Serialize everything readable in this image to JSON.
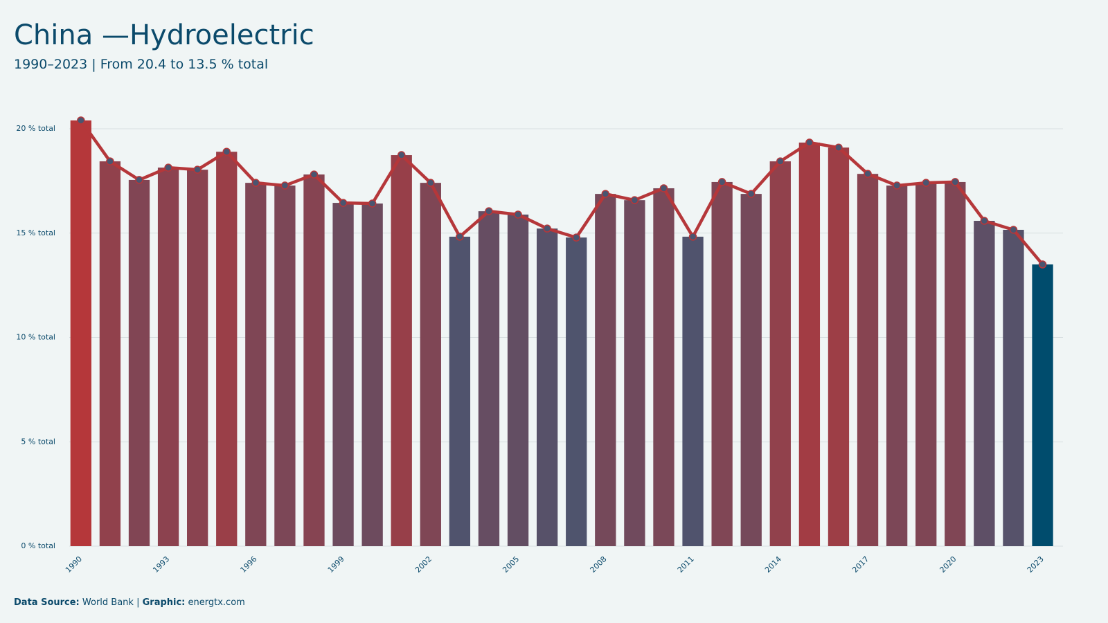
{
  "chart_data": {
    "type": "bar-line",
    "title": "China —Hydroelectric",
    "subtitle": "1990–2023 | From 20.4 to 13.5 % total",
    "footer": {
      "source_label": "Data Source:",
      "source": "World Bank |",
      "graphic_label": "Graphic:",
      "graphic": "energtx.com"
    },
    "x": [
      1990,
      1991,
      1992,
      1993,
      1994,
      1995,
      1996,
      1997,
      1998,
      1999,
      2000,
      2001,
      2002,
      2003,
      2004,
      2005,
      2006,
      2007,
      2008,
      2009,
      2010,
      2011,
      2012,
      2013,
      2014,
      2015,
      2016,
      2017,
      2018,
      2019,
      2020,
      2021,
      2022,
      2023
    ],
    "values": [
      20.4,
      18.44,
      17.55,
      18.14,
      18.04,
      18.9,
      17.41,
      17.28,
      17.81,
      16.45,
      16.42,
      18.74,
      17.41,
      14.83,
      16.05,
      15.89,
      15.22,
      14.79,
      16.88,
      16.58,
      17.15,
      14.83,
      17.45,
      16.88,
      18.44,
      19.34,
      19.1,
      17.84,
      17.28,
      17.41,
      17.45,
      15.59,
      15.16,
      13.5
    ],
    "xlim": [
      1989.6,
      2023.7
    ],
    "xticks": [
      1990,
      1993,
      1996,
      1999,
      2002,
      2005,
      2008,
      2011,
      2014,
      2017,
      2020,
      2023
    ],
    "ylim": [
      0,
      20.4
    ],
    "yticks": [
      {
        "value": 0,
        "label": "0 % total"
      },
      {
        "value": 5,
        "label": "5 % total"
      },
      {
        "value": 10,
        "label": "10 % total"
      },
      {
        "value": 15,
        "label": "15 % total"
      },
      {
        "value": 20,
        "label": "20 % total"
      }
    ],
    "grid": true,
    "color_low": "#4a5570",
    "color_high": "#b5373a",
    "highlight_color": "#004c6d",
    "line_color": "#b5373a",
    "marker_color": "#4a5570"
  }
}
